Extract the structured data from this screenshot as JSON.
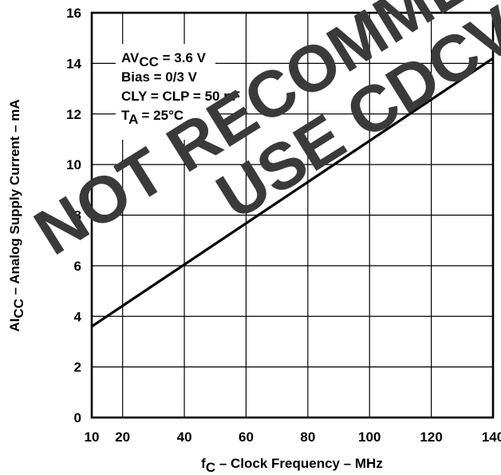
{
  "chart_data": {
    "type": "line",
    "x": [
      10,
      140
    ],
    "series": [
      {
        "values": [
          3.6,
          14.2
        ]
      }
    ],
    "xlabel": {
      "prefix": "f",
      "subscript": "C",
      "suffix": " – Clock Frequency – MHz"
    },
    "ylabel": {
      "prefix": "AI",
      "subscript": "CC",
      "suffix": " – Analog Supply Current – mA"
    },
    "xlim": [
      10,
      140
    ],
    "ylim": [
      0,
      16
    ],
    "xticks": [
      10,
      20,
      40,
      60,
      80,
      100,
      120,
      140
    ],
    "yticks": [
      0,
      2,
      4,
      6,
      8,
      10,
      12,
      14,
      16
    ],
    "grid": true,
    "conditions": [
      {
        "prefix": "AV",
        "subscript": "CC",
        "suffix": " = 3.6 V"
      },
      {
        "prefix": "Bias = 0/3 V",
        "subscript": "",
        "suffix": ""
      },
      {
        "prefix": "CLY = CLP = 50 pF",
        "subscript": "",
        "suffix": ""
      },
      {
        "prefix": "T",
        "subscript": "A",
        "suffix": " = 25°C"
      }
    ]
  },
  "watermark": {
    "line1": "NOT RECOMMENDED",
    "line2": "USE CDCV"
  }
}
